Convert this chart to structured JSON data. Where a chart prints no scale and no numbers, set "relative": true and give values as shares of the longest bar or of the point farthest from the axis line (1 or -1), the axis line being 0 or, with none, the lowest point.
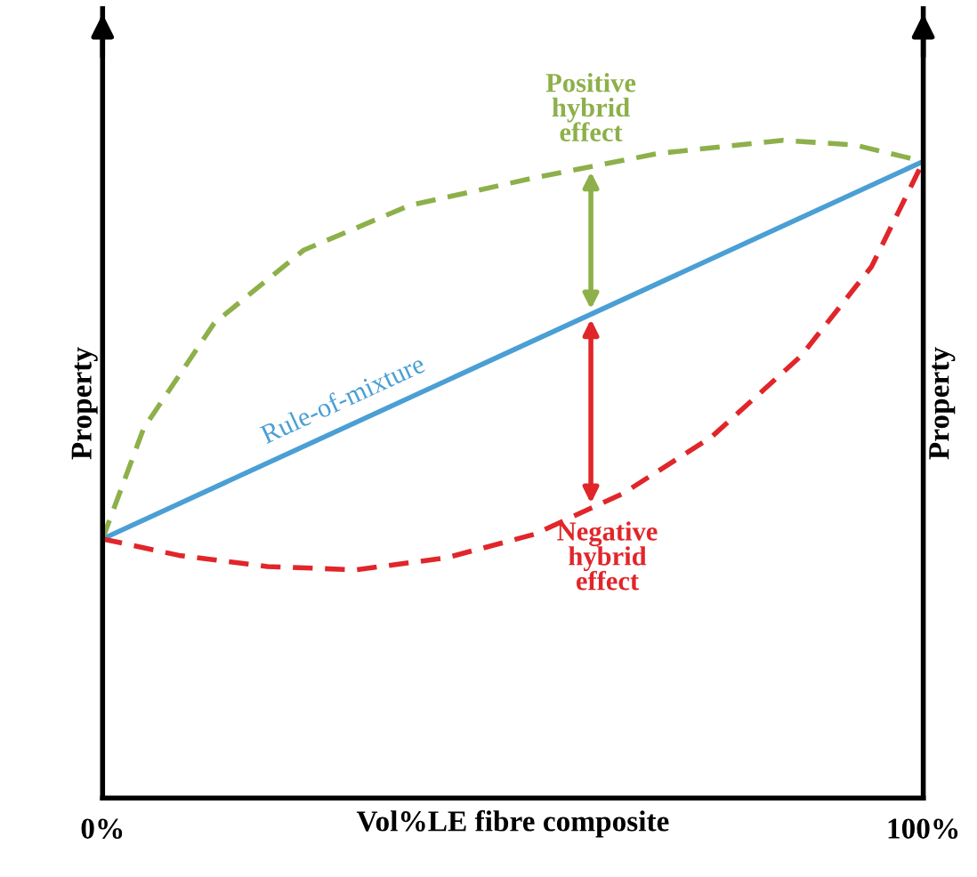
{
  "chart_data": {
    "type": "line",
    "relative": true,
    "xlabel": "Vol%LE fibre composite",
    "ylabel": "Property",
    "y2label": "Property",
    "xlim": [
      0,
      100
    ],
    "xticks": [
      {
        "value": 0,
        "label": "0%"
      },
      {
        "value": 100,
        "label": "100%"
      }
    ],
    "marker": "none",
    "series": [
      {
        "name": "Rule-of-mixture",
        "color": "#4a9fd4",
        "line_style": "solid",
        "x": [
          0,
          100
        ],
        "values": [
          0.394,
          0.968
        ]
      },
      {
        "color": "#8db04a",
        "line_style": "dashed",
        "x": [
          0,
          5.0,
          13.6,
          24.5,
          37.4,
          52.6,
          67.7,
          82.9,
          91.6,
          100
        ],
        "values": [
          0.394,
          0.562,
          0.722,
          0.833,
          0.901,
          0.943,
          0.98,
          1.0,
          0.993,
          0.968
        ]
      },
      {
        "color": "#e0262a",
        "line_style": "dashed",
        "x": [
          0,
          9.3,
          20.1,
          30.9,
          41.8,
          52.6,
          63.4,
          74.2,
          85.1,
          93.7,
          100
        ],
        "values": [
          0.394,
          0.369,
          0.352,
          0.347,
          0.365,
          0.401,
          0.463,
          0.549,
          0.672,
          0.808,
          0.968
        ]
      }
    ],
    "annotations": [
      "Positive\nhybrid\neffect",
      "Negative\nhybrid\neffect"
    ]
  }
}
